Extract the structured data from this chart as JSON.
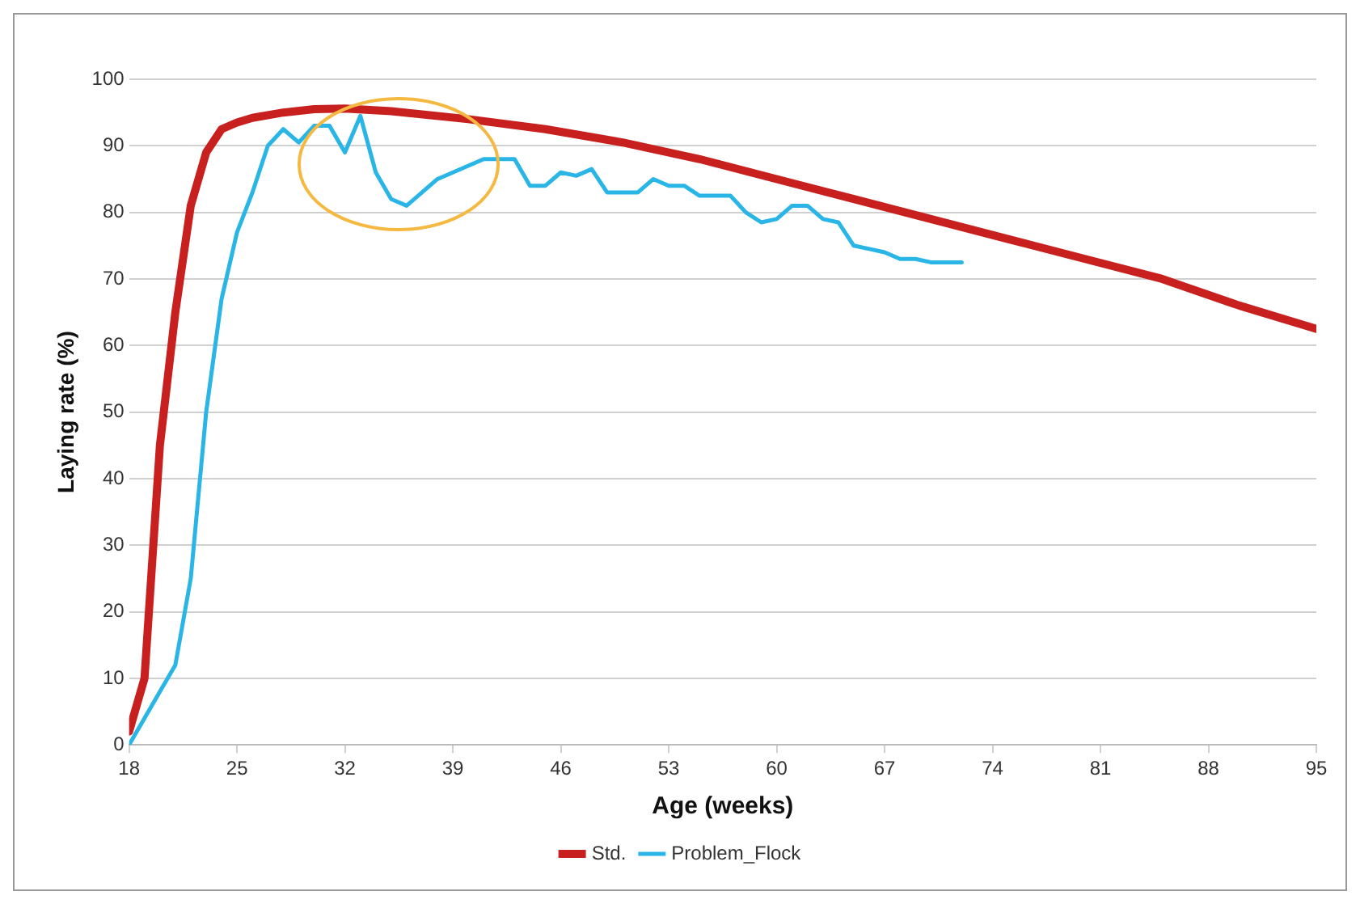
{
  "chart_data": {
    "type": "line",
    "xlabel": "Age (weeks)",
    "ylabel": "Laying rate (%)",
    "xlim": [
      18,
      95
    ],
    "xticks": [
      18,
      25,
      32,
      39,
      46,
      53,
      60,
      67,
      74,
      81,
      88,
      95
    ],
    "ylim": [
      0,
      100
    ],
    "yticks": [
      0,
      10,
      20,
      30,
      40,
      50,
      60,
      70,
      80,
      90,
      100
    ],
    "grid": "y",
    "legend": "bottom",
    "marker": "none",
    "line_style": "solid",
    "series": [
      {
        "name": "Std.",
        "color": "#c8201e",
        "x": [
          18,
          19,
          20,
          21,
          22,
          23,
          24,
          25,
          26,
          28,
          30,
          32,
          35,
          40,
          45,
          50,
          55,
          60,
          65,
          70,
          75,
          80,
          85,
          90,
          95
        ],
        "values": [
          2,
          10,
          45,
          65,
          81,
          89,
          92.5,
          93.5,
          94.2,
          95,
          95.5,
          95.6,
          95.2,
          94,
          92.5,
          90.5,
          88,
          85,
          82,
          79,
          76,
          73,
          70,
          66,
          62.5
        ]
      },
      {
        "name": "Problem_Flock",
        "color": "#29b6e6",
        "x": [
          18,
          19,
          20,
          21,
          22,
          23,
          24,
          25,
          26,
          27,
          28,
          29,
          30,
          31,
          32,
          33,
          34,
          35,
          36,
          37,
          38,
          39,
          40,
          41,
          42,
          43,
          44,
          45,
          46,
          47,
          48,
          49,
          50,
          51,
          52,
          53,
          54,
          55,
          56,
          57,
          58,
          59,
          60,
          61,
          62,
          63,
          64,
          65,
          66,
          67,
          68,
          69,
          70,
          71,
          72
        ],
        "values": [
          0,
          4,
          8,
          12,
          25,
          50,
          67,
          77,
          83,
          90,
          92.5,
          90.5,
          93,
          93,
          89,
          94.5,
          86,
          82,
          81,
          83,
          85,
          86,
          87,
          88,
          88,
          88,
          84,
          84,
          86,
          85.5,
          86.5,
          83,
          83,
          83,
          85,
          84,
          84,
          82.5,
          82.5,
          82.5,
          80,
          78.5,
          79,
          81,
          81,
          79,
          78.5,
          75,
          74.5,
          74,
          73,
          73,
          72.5,
          72.5,
          72.5
        ]
      }
    ]
  }
}
